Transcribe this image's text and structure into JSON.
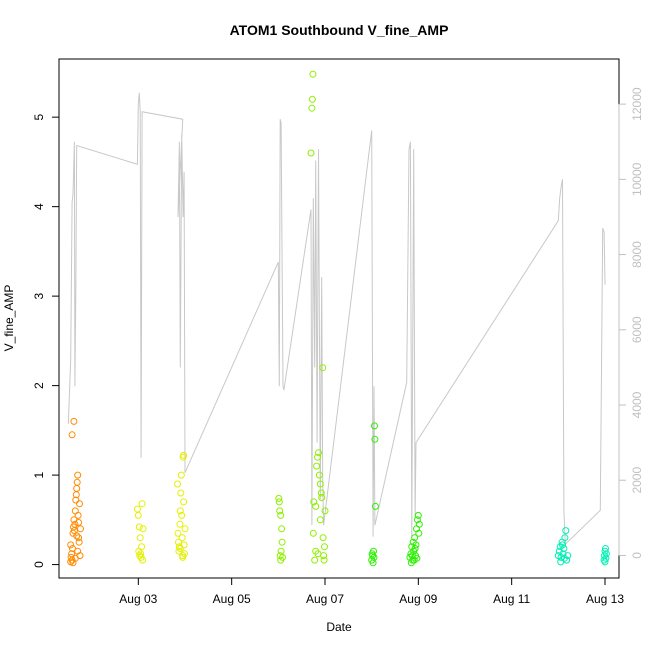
{
  "chart_data": {
    "type": "scatter",
    "title": "ATOM1 Southbound V_fine_AMP",
    "xlabel": "Date",
    "ylabel": "V_fine_AMP",
    "xlim": [
      1.3,
      13.3
    ],
    "ylim": [
      -0.15,
      5.65
    ],
    "x_ticks": [
      {
        "value": 3,
        "label": "Aug 03"
      },
      {
        "value": 5,
        "label": "Aug 05"
      },
      {
        "value": 7,
        "label": "Aug 07"
      },
      {
        "value": 9,
        "label": "Aug 09"
      },
      {
        "value": 11,
        "label": "Aug 11"
      },
      {
        "value": 13,
        "label": "Aug 13"
      }
    ],
    "y_ticks": [
      0,
      1,
      2,
      3,
      4,
      5
    ],
    "y2_ticks": [
      0,
      2000,
      4000,
      6000,
      8000,
      10000,
      12000
    ],
    "y2lim": [
      -600,
      13200
    ],
    "y2_color": "#c0c0c0",
    "grid": false,
    "series": [
      {
        "color": "#ff8c00",
        "values": [
          [
            1.55,
            0.03
          ],
          [
            1.56,
            0.08
          ],
          [
            1.57,
            0.12
          ],
          [
            1.58,
            0.05
          ],
          [
            1.59,
            0.18
          ],
          [
            1.6,
            0.35
          ],
          [
            1.61,
            0.42
          ],
          [
            1.62,
            0.5
          ],
          [
            1.63,
            0.38
          ],
          [
            1.64,
            0.45
          ],
          [
            1.65,
            0.6
          ],
          [
            1.66,
            0.72
          ],
          [
            1.67,
            0.78
          ],
          [
            1.68,
            0.85
          ],
          [
            1.69,
            0.92
          ],
          [
            1.7,
            1.0
          ],
          [
            1.71,
            0.55
          ],
          [
            1.72,
            0.3
          ],
          [
            1.73,
            0.25
          ],
          [
            1.74,
            0.68
          ],
          [
            1.75,
            0.1
          ],
          [
            1.76,
            0.4
          ],
          [
            1.58,
            1.45
          ],
          [
            1.62,
            1.6
          ],
          [
            1.6,
            0.02
          ],
          [
            1.65,
            0.07
          ],
          [
            1.7,
            0.15
          ],
          [
            1.55,
            0.22
          ],
          [
            1.68,
            0.32
          ],
          [
            1.72,
            0.47
          ]
        ]
      },
      {
        "color": "#e4f000",
        "values": [
          [
            2.98,
            0.62
          ],
          [
            3.0,
            0.55
          ],
          [
            3.02,
            0.42
          ],
          [
            3.04,
            0.3
          ],
          [
            3.05,
            0.12
          ],
          [
            3.06,
            0.08
          ],
          [
            3.07,
            0.2
          ],
          [
            3.08,
            0.68
          ],
          [
            3.1,
            0.4
          ],
          [
            3.03,
            0.1
          ],
          [
            3.01,
            0.15
          ],
          [
            3.09,
            0.05
          ],
          [
            3.85,
            0.35
          ],
          [
            3.86,
            0.25
          ],
          [
            3.87,
            0.15
          ],
          [
            3.88,
            0.2
          ],
          [
            3.89,
            0.45
          ],
          [
            3.9,
            0.6
          ],
          [
            3.91,
            0.8
          ],
          [
            3.92,
            1.0
          ],
          [
            3.93,
            0.55
          ],
          [
            3.94,
            0.3
          ],
          [
            3.95,
            0.1
          ],
          [
            3.96,
            1.2
          ],
          [
            3.97,
            1.22
          ],
          [
            3.98,
            0.22
          ],
          [
            3.99,
            0.12
          ],
          [
            4.0,
            0.4
          ],
          [
            3.84,
            0.9
          ],
          [
            3.9,
            0.18
          ],
          [
            3.95,
            0.08
          ],
          [
            3.97,
            0.7
          ]
        ]
      },
      {
        "color": "#8ef000",
        "values": [
          [
            6.02,
            0.7
          ],
          [
            6.03,
            0.6
          ],
          [
            6.04,
            0.1
          ],
          [
            6.05,
            0.05
          ],
          [
            6.06,
            0.15
          ],
          [
            6.07,
            0.4
          ],
          [
            6.08,
            0.25
          ],
          [
            6.09,
            0.08
          ],
          [
            6.05,
            0.55
          ],
          [
            6.01,
            0.74
          ],
          [
            6.7,
            4.6
          ],
          [
            6.72,
            5.1
          ],
          [
            6.73,
            5.2
          ],
          [
            6.74,
            5.48
          ],
          [
            6.75,
            0.35
          ],
          [
            6.76,
            0.7
          ],
          [
            6.78,
            0.05
          ],
          [
            6.8,
            0.15
          ],
          [
            6.82,
            1.1
          ],
          [
            6.84,
            1.2
          ],
          [
            6.86,
            1.25
          ],
          [
            6.88,
            1.0
          ],
          [
            6.9,
            0.9
          ],
          [
            6.92,
            0.8
          ],
          [
            6.95,
            2.2
          ],
          [
            6.96,
            0.3
          ],
          [
            6.97,
            0.1
          ],
          [
            6.98,
            0.05
          ],
          [
            7.0,
            0.6
          ],
          [
            6.85,
            0.12
          ],
          [
            6.9,
            0.5
          ],
          [
            6.93,
            0.75
          ],
          [
            6.8,
            0.65
          ],
          [
            6.99,
            0.2
          ]
        ]
      },
      {
        "color": "#2cf000",
        "values": [
          [
            8.0,
            0.05
          ],
          [
            8.02,
            0.1
          ],
          [
            8.04,
            0.15
          ],
          [
            8.06,
            1.55
          ],
          [
            8.07,
            1.4
          ],
          [
            8.08,
            0.65
          ],
          [
            8.05,
            0.08
          ],
          [
            8.03,
            0.02
          ],
          [
            8.01,
            0.12
          ],
          [
            8.82,
            0.08
          ],
          [
            8.84,
            0.12
          ],
          [
            8.86,
            0.2
          ],
          [
            8.88,
            0.05
          ],
          [
            8.9,
            0.15
          ],
          [
            8.92,
            0.3
          ],
          [
            8.94,
            0.1
          ],
          [
            8.96,
            0.4
          ],
          [
            8.98,
            0.5
          ],
          [
            9.0,
            0.55
          ],
          [
            9.02,
            0.45
          ],
          [
            8.85,
            0.02
          ],
          [
            8.89,
            0.25
          ],
          [
            8.93,
            0.18
          ],
          [
            8.97,
            0.07
          ],
          [
            9.01,
            0.35
          ],
          [
            8.87,
            0.1
          ],
          [
            8.91,
            0.05
          ],
          [
            8.95,
            0.22
          ]
        ]
      },
      {
        "color": "#00f0b4",
        "values": [
          [
            12.0,
            0.1
          ],
          [
            12.02,
            0.15
          ],
          [
            12.04,
            0.2
          ],
          [
            12.06,
            0.08
          ],
          [
            12.08,
            0.25
          ],
          [
            12.1,
            0.12
          ],
          [
            12.12,
            0.18
          ],
          [
            12.14,
            0.3
          ],
          [
            12.16,
            0.38
          ],
          [
            12.18,
            0.05
          ],
          [
            12.2,
            0.1
          ],
          [
            12.05,
            0.03
          ],
          [
            12.09,
            0.22
          ],
          [
            12.13,
            0.07
          ],
          [
            12.98,
            0.05
          ],
          [
            12.99,
            0.1
          ],
          [
            13.0,
            0.15
          ],
          [
            13.01,
            0.18
          ],
          [
            13.02,
            0.07
          ],
          [
            13.03,
            0.12
          ],
          [
            13.0,
            0.03
          ]
        ]
      }
    ],
    "secondary_line": {
      "color": "#c8c8c8",
      "values": [
        [
          1.5,
          3500
        ],
        [
          1.55,
          5200
        ],
        [
          1.58,
          9400
        ],
        [
          1.6,
          9600
        ],
        [
          1.63,
          11000
        ],
        [
          1.64,
          4500
        ],
        [
          1.66,
          7000
        ],
        [
          1.68,
          10900
        ],
        [
          2.98,
          10400
        ],
        [
          3.0,
          12000
        ],
        [
          3.02,
          12300
        ],
        [
          3.04,
          11800
        ],
        [
          3.06,
          2600
        ],
        [
          3.08,
          11800
        ],
        [
          3.95,
          11600
        ],
        [
          3.85,
          9000
        ],
        [
          3.88,
          11000
        ],
        [
          3.9,
          5000
        ],
        [
          3.93,
          11200
        ],
        [
          3.96,
          9000
        ],
        [
          3.98,
          10200
        ],
        [
          4.0,
          2200
        ],
        [
          6.0,
          7800
        ],
        [
          6.02,
          4500
        ],
        [
          6.04,
          11600
        ],
        [
          6.06,
          11500
        ],
        [
          6.1,
          4500
        ],
        [
          6.12,
          4400
        ],
        [
          6.7,
          9200
        ],
        [
          6.72,
          800
        ],
        [
          6.75,
          9500
        ],
        [
          6.78,
          5000
        ],
        [
          6.8,
          10500
        ],
        [
          6.83,
          3000
        ],
        [
          6.86,
          10800
        ],
        [
          6.9,
          1500
        ],
        [
          6.93,
          7400
        ],
        [
          6.95,
          2000
        ],
        [
          6.97,
          800
        ],
        [
          8.0,
          11300
        ],
        [
          8.03,
          500
        ],
        [
          8.05,
          4500
        ],
        [
          8.07,
          800
        ],
        [
          8.75,
          4600
        ],
        [
          8.8,
          10800
        ],
        [
          8.83,
          11000
        ],
        [
          8.86,
          500
        ],
        [
          8.9,
          10800
        ],
        [
          8.93,
          1000
        ],
        [
          8.95,
          3000
        ],
        [
          12.0,
          8900
        ],
        [
          12.03,
          9500
        ],
        [
          12.06,
          9800
        ],
        [
          12.09,
          10000
        ],
        [
          12.12,
          1200
        ],
        [
          12.15,
          300
        ],
        [
          12.9,
          1200
        ],
        [
          12.95,
          8700
        ],
        [
          12.98,
          8600
        ],
        [
          13.0,
          7200
        ]
      ]
    }
  }
}
